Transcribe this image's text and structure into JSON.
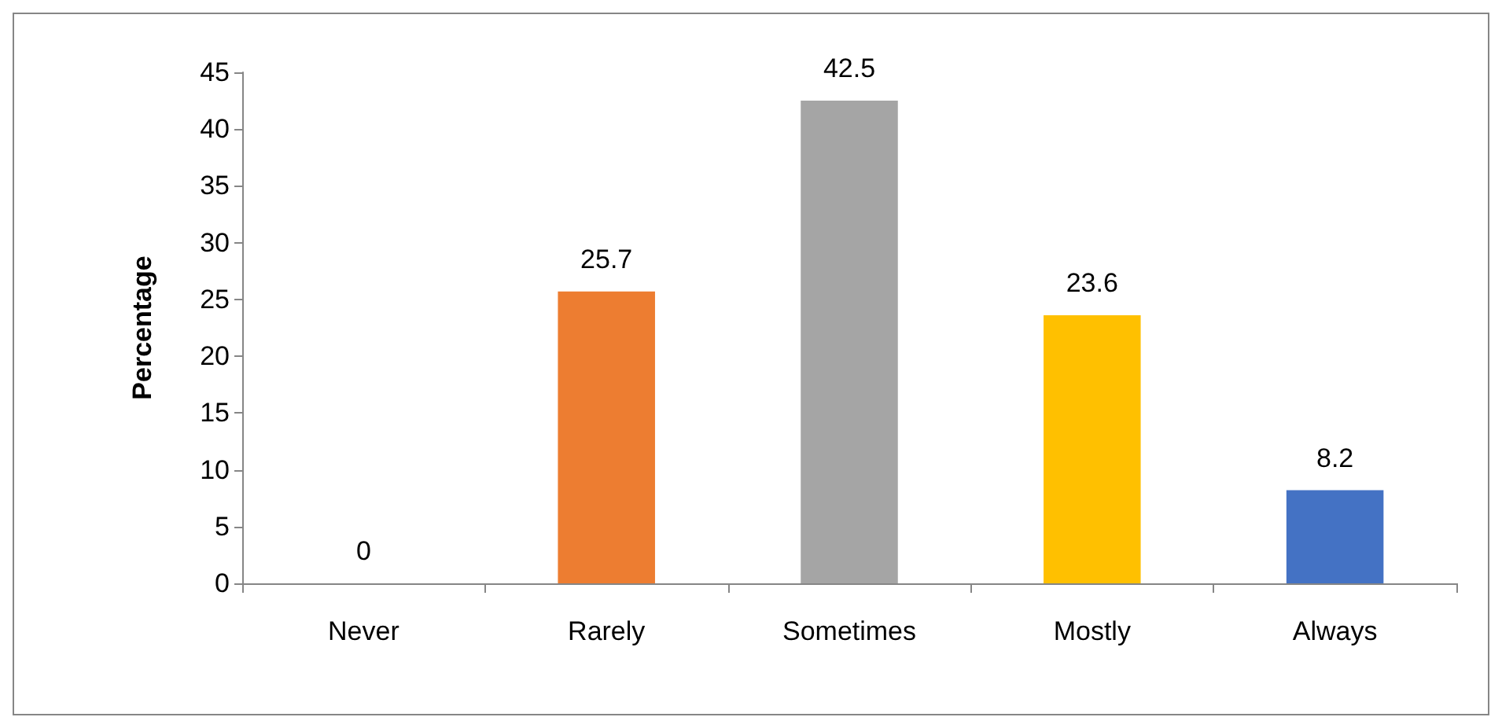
{
  "chart_data": {
    "type": "bar",
    "ylabel": "Percentage",
    "categories": [
      "Never",
      "Rarely",
      "Sometimes",
      "Mostly",
      "Always"
    ],
    "values": [
      0,
      25.7,
      42.5,
      23.6,
      8.2
    ],
    "colors": [
      "#5b9bd5",
      "#ed7d31",
      "#a5a5a5",
      "#ffc000",
      "#4472c4"
    ],
    "ylim": [
      0,
      45
    ],
    "yticks": [
      0,
      5,
      10,
      15,
      20,
      25,
      30,
      35,
      40,
      45
    ],
    "data_labels": true
  }
}
